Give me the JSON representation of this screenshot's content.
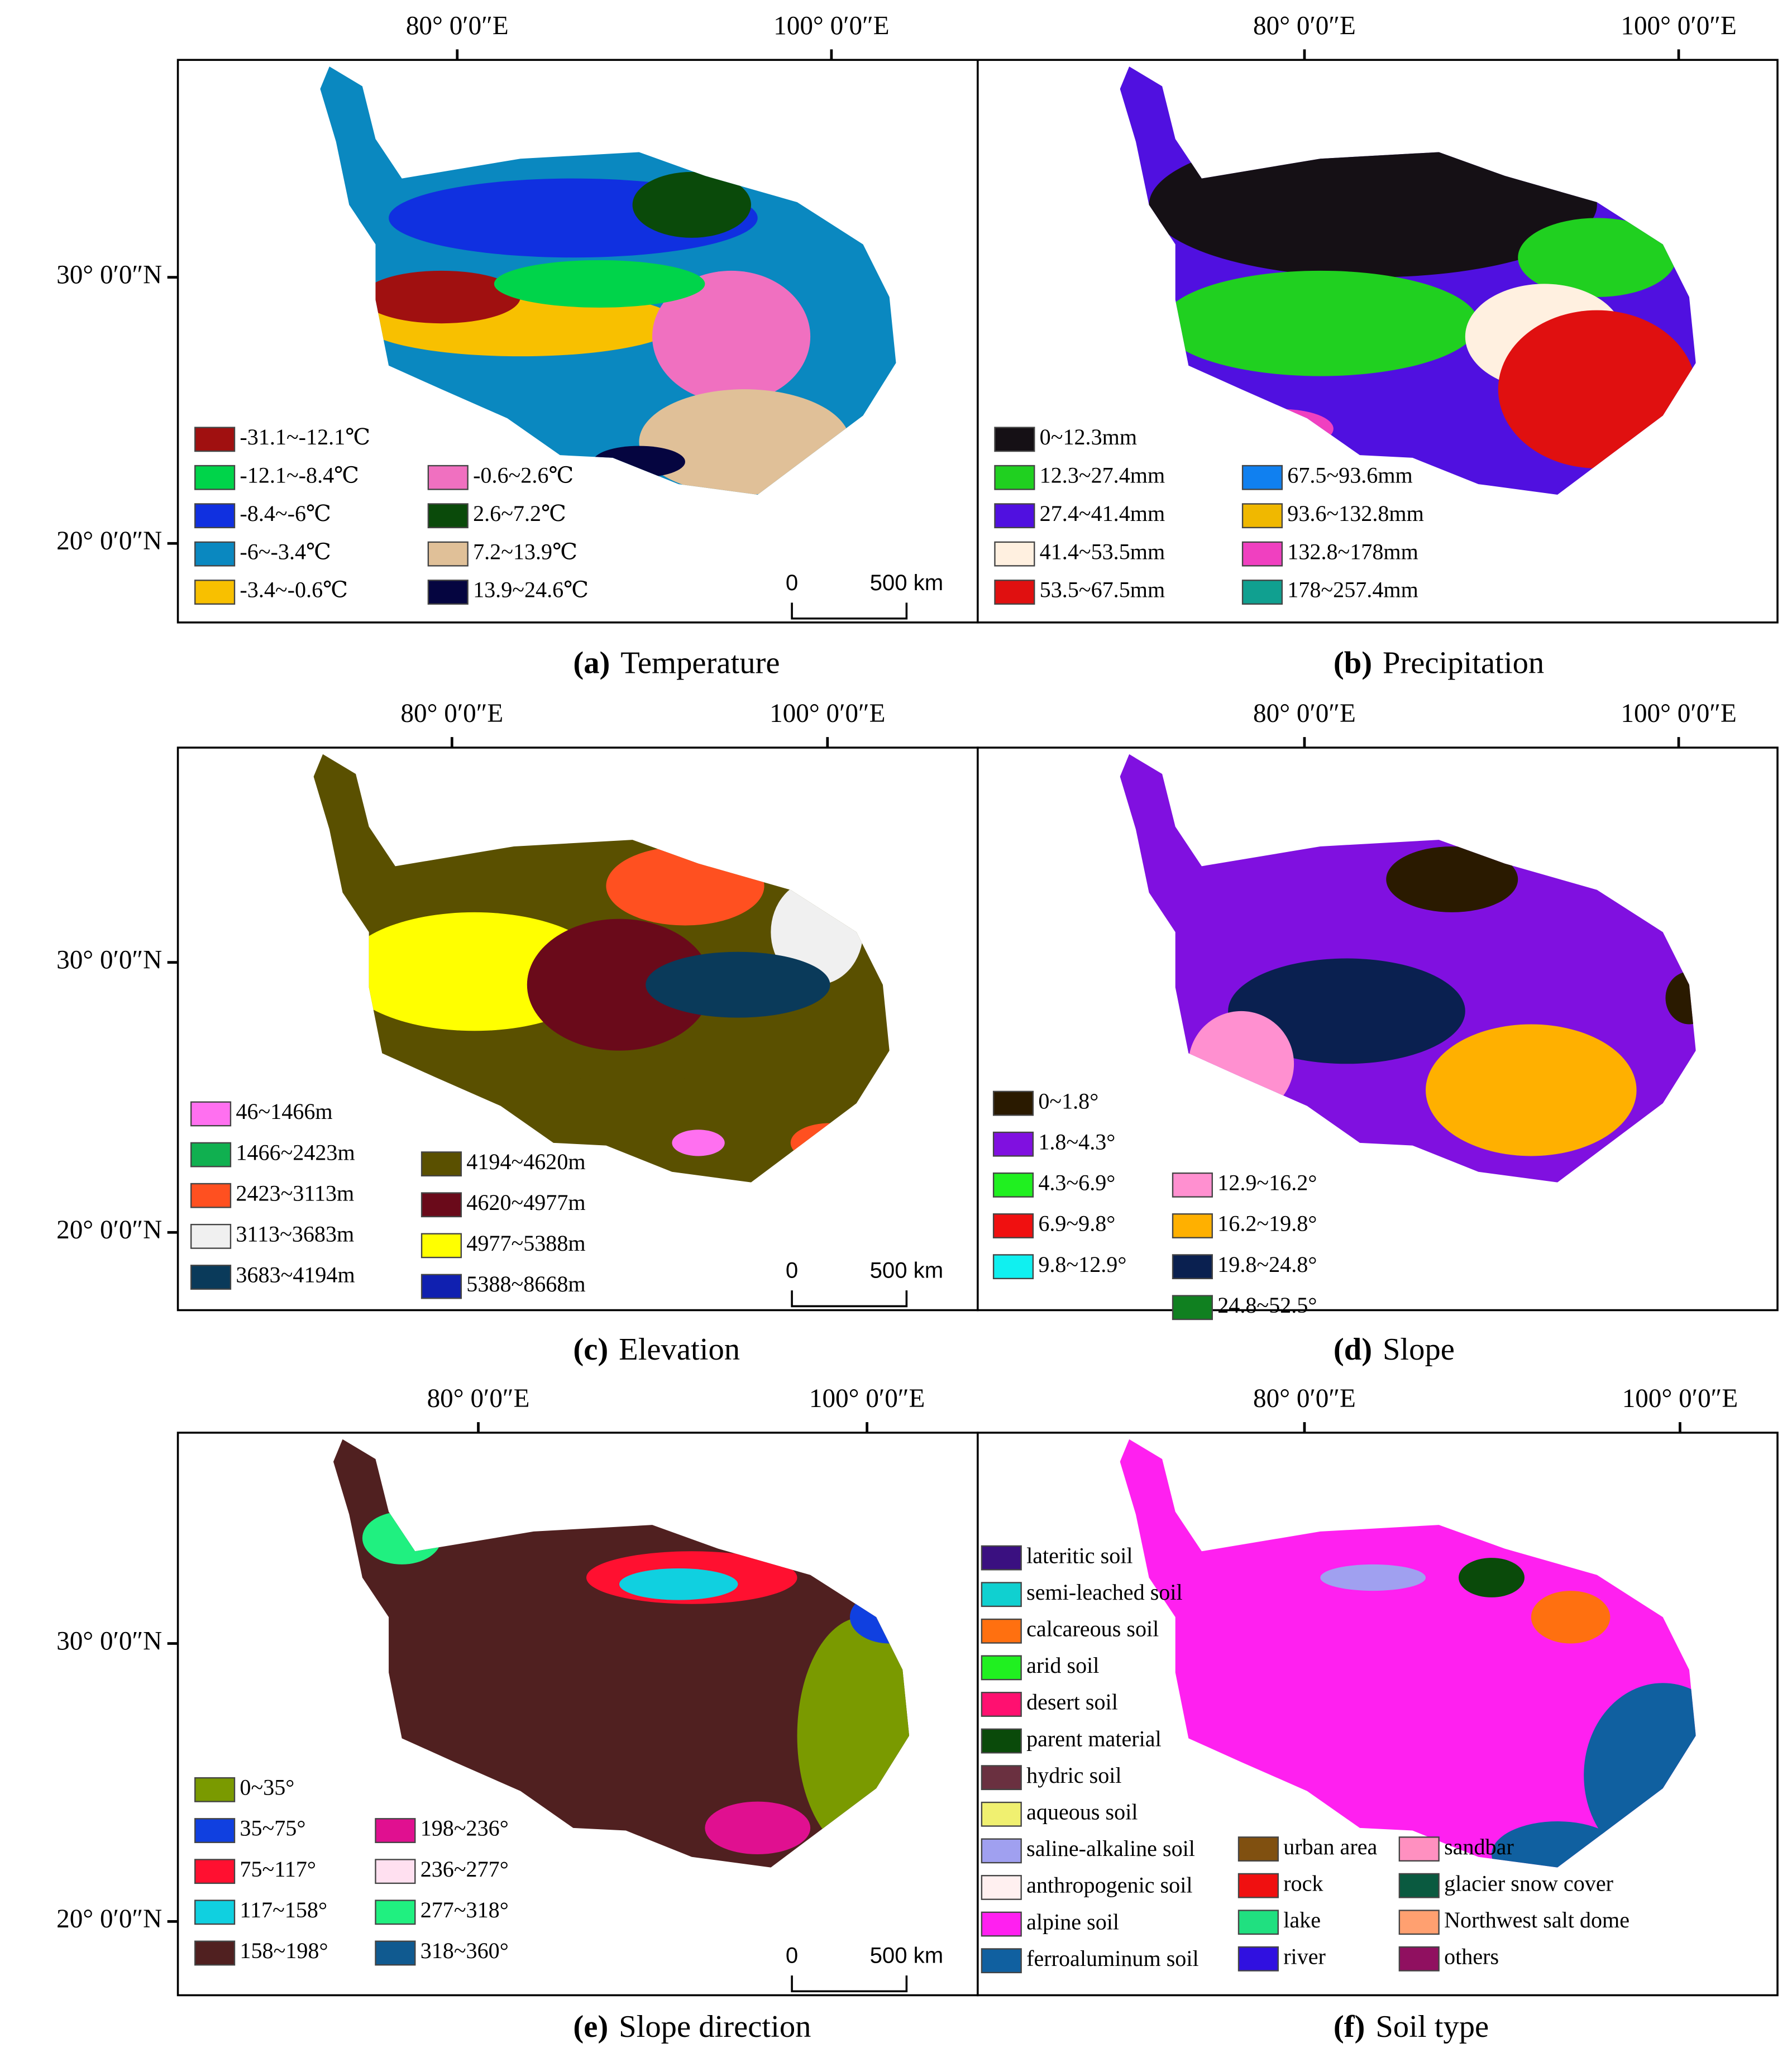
{
  "panels": [
    {
      "label": "(a)",
      "caption": "Temperature",
      "lon_labels": [
        "80° 0′0″E",
        "100° 0′0″E"
      ],
      "lat_labels": [
        "30° 0′0″N",
        "20° 0′0″N"
      ],
      "scale_labels": [
        "0",
        "500 km"
      ],
      "legend": [
        {
          "label": "-31.1~-12.1℃",
          "color": "#a01010"
        },
        {
          "label": "-12.1~-8.4℃",
          "color": "#00d44a"
        },
        {
          "label": "-8.4~-6℃",
          "color": "#1030e0"
        },
        {
          "label": "-6~-3.4℃",
          "color": "#0a88c0"
        },
        {
          "label": "-3.4~-0.6℃",
          "color": "#f8c000"
        },
        {
          "label": "-0.6~2.6℃",
          "color": "#f070c0"
        },
        {
          "label": "2.6~7.2℃",
          "color": "#0a4a0a"
        },
        {
          "label": "7.2~13.9℃",
          "color": "#e0c098"
        },
        {
          "label": "13.9~24.6℃",
          "color": "#050540"
        }
      ]
    },
    {
      "label": "(b)",
      "caption": "Precipitation",
      "lon_labels": [
        "80° 0′0″E",
        "100° 0′0″E"
      ],
      "legend": [
        {
          "label": "0~12.3mm",
          "color": "#151015"
        },
        {
          "label": "12.3~27.4mm",
          "color": "#20d020"
        },
        {
          "label": "27.4~41.4mm",
          "color": "#5010e0"
        },
        {
          "label": "41.4~53.5mm",
          "color": "#fff0e0"
        },
        {
          "label": "53.5~67.5mm",
          "color": "#e01010"
        },
        {
          "label": "67.5~93.6mm",
          "color": "#1080f0"
        },
        {
          "label": "93.6~132.8mm",
          "color": "#f0b800"
        },
        {
          "label": "132.8~178mm",
          "color": "#f040c0"
        },
        {
          "label": "178~257.4mm",
          "color": "#10a090"
        }
      ]
    },
    {
      "label": "(c)",
      "caption": "Elevation",
      "lon_labels": [
        "80° 0′0″E",
        "100° 0′0″E"
      ],
      "lat_labels": [
        "30° 0′0″N",
        "20° 0′0″N"
      ],
      "scale_labels": [
        "0",
        "500 km"
      ],
      "legend": [
        {
          "label": "46~1466m",
          "color": "#ff70f0"
        },
        {
          "label": "1466~2423m",
          "color": "#10b050"
        },
        {
          "label": "2423~3113m",
          "color": "#ff5020"
        },
        {
          "label": "3113~3683m",
          "color": "#f0f0f0"
        },
        {
          "label": "3683~4194m",
          "color": "#0a3a5a"
        },
        {
          "label": "4194~4620m",
          "color": "#5a5000"
        },
        {
          "label": "4620~4977m",
          "color": "#6a0a1a"
        },
        {
          "label": "4977~5388m",
          "color": "#ffff00"
        },
        {
          "label": "5388~8668m",
          "color": "#1020b0"
        }
      ]
    },
    {
      "label": "(d)",
      "caption": "Slope",
      "lon_labels": [
        "80° 0′0″E",
        "100° 0′0″E"
      ],
      "legend": [
        {
          "label": "0~1.8°",
          "color": "#2a1a00"
        },
        {
          "label": "1.8~4.3°",
          "color": "#8010e0"
        },
        {
          "label": "4.3~6.9°",
          "color": "#20f020"
        },
        {
          "label": "6.9~9.8°",
          "color": "#f01010"
        },
        {
          "label": "9.8~12.9°",
          "color": "#10f0f0"
        },
        {
          "label": "12.9~16.2°",
          "color": "#ff90d0"
        },
        {
          "label": "16.2~19.8°",
          "color": "#ffb000"
        },
        {
          "label": "19.8~24.8°",
          "color": "#0a2050"
        },
        {
          "label": "24.8~52.5°",
          "color": "#108020"
        }
      ]
    },
    {
      "label": "(e)",
      "caption": "Slope direction",
      "lon_labels": [
        "80° 0′0″E",
        "100° 0′0″E"
      ],
      "lat_labels": [
        "30° 0′0″N",
        "20° 0′0″N"
      ],
      "scale_labels": [
        "0",
        "500 km"
      ],
      "legend": [
        {
          "label": "0~35°",
          "color": "#7a9a00"
        },
        {
          "label": "35~75°",
          "color": "#1040e0"
        },
        {
          "label": "75~117°",
          "color": "#ff1030"
        },
        {
          "label": "117~158°",
          "color": "#10d0e0"
        },
        {
          "label": "158~198°",
          "color": "#502020"
        },
        {
          "label": "198~236°",
          "color": "#e01090"
        },
        {
          "label": "236~277°",
          "color": "#ffe0f0"
        },
        {
          "label": "277~318°",
          "color": "#20f080"
        },
        {
          "label": "318~360°",
          "color": "#105a90"
        }
      ]
    },
    {
      "label": "(f)",
      "caption": "Soil type",
      "lon_labels": [
        "80° 0′0″E",
        "100° 0′0″E"
      ],
      "legend": [
        {
          "label": "lateritic soil",
          "color": "#3a1080"
        },
        {
          "label": "semi-leached soil",
          "color": "#10d0d0"
        },
        {
          "label": "calcareous soil",
          "color": "#ff7010"
        },
        {
          "label": "arid soil",
          "color": "#20f020"
        },
        {
          "label": "desert soil",
          "color": "#ff1070"
        },
        {
          "label": "parent material",
          "color": "#0a4a0a"
        },
        {
          "label": "hydric soil",
          "color": "#6a3040"
        },
        {
          "label": "aqueous soil",
          "color": "#f0f070"
        },
        {
          "label": "saline-alkaline soil",
          "color": "#a0a0f0"
        },
        {
          "label": "anthropogenic soil",
          "color": "#fff0f0"
        },
        {
          "label": "alpine soil",
          "color": "#ff20f0"
        },
        {
          "label": "ferroaluminum soil",
          "color": "#1060a0"
        },
        {
          "label": "urban area",
          "color": "#805010"
        },
        {
          "label": "rock",
          "color": "#f01010"
        },
        {
          "label": "lake",
          "color": "#20e080"
        },
        {
          "label": "river",
          "color": "#3010e0"
        },
        {
          "label": "sandbar",
          "color": "#ff90c0"
        },
        {
          "label": "glacier snow cover",
          "color": "#0a5a40"
        },
        {
          "label": "Northwest salt dome",
          "color": "#ffa070"
        },
        {
          "label": "others",
          "color": "#901060"
        }
      ]
    }
  ]
}
